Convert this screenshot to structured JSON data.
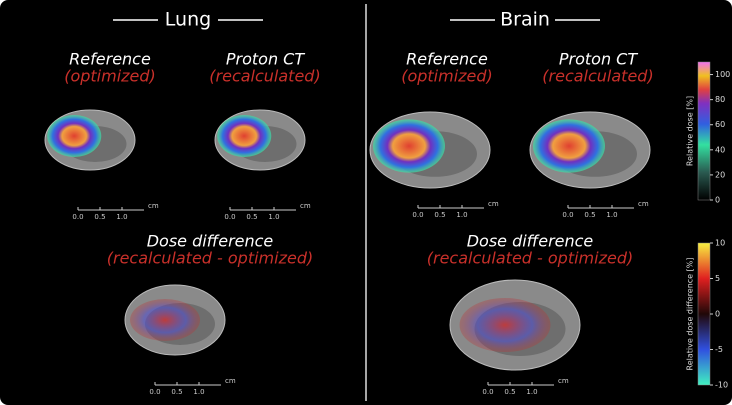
{
  "panels": [
    {
      "title": "Lung",
      "images": [
        {
          "title": "Reference",
          "subtitle": "(optimized)",
          "scale_bar": {
            "ticks": [
              "0.0",
              "0.5",
              "1.0"
            ],
            "unit": "cm"
          }
        },
        {
          "title": "Proton CT",
          "subtitle": "(recalculated)",
          "scale_bar": {
            "ticks": [
              "0.0",
              "0.5",
              "1.0"
            ],
            "unit": "cm"
          }
        },
        {
          "title": "Dose difference",
          "subtitle": "(recalculated - optimized)",
          "scale_bar": {
            "ticks": [
              "0.0",
              "0.5",
              "1.0"
            ],
            "unit": "cm"
          }
        }
      ]
    },
    {
      "title": "Brain",
      "images": [
        {
          "title": "Reference",
          "subtitle": "(optimized)",
          "scale_bar": {
            "ticks": [
              "0.0",
              "0.5",
              "1.0"
            ],
            "unit": "cm"
          }
        },
        {
          "title": "Proton CT",
          "subtitle": "(recalculated)",
          "scale_bar": {
            "ticks": [
              "0.0",
              "0.5",
              "1.0"
            ],
            "unit": "cm"
          }
        },
        {
          "title": "Dose difference",
          "subtitle": "(recalculated - optimized)",
          "scale_bar": {
            "ticks": [
              "0.0",
              "0.5",
              "1.0"
            ],
            "unit": "cm"
          }
        }
      ]
    }
  ],
  "colorbars": [
    {
      "label": "Relative dose [%]",
      "lim": [
        0,
        110
      ],
      "ticks": [
        0,
        20,
        40,
        60,
        80,
        100
      ]
    },
    {
      "label": "Relative dose difference [%]",
      "lim": [
        -10,
        10
      ],
      "ticks": [
        -10,
        -5,
        0,
        5,
        10
      ]
    }
  ]
}
